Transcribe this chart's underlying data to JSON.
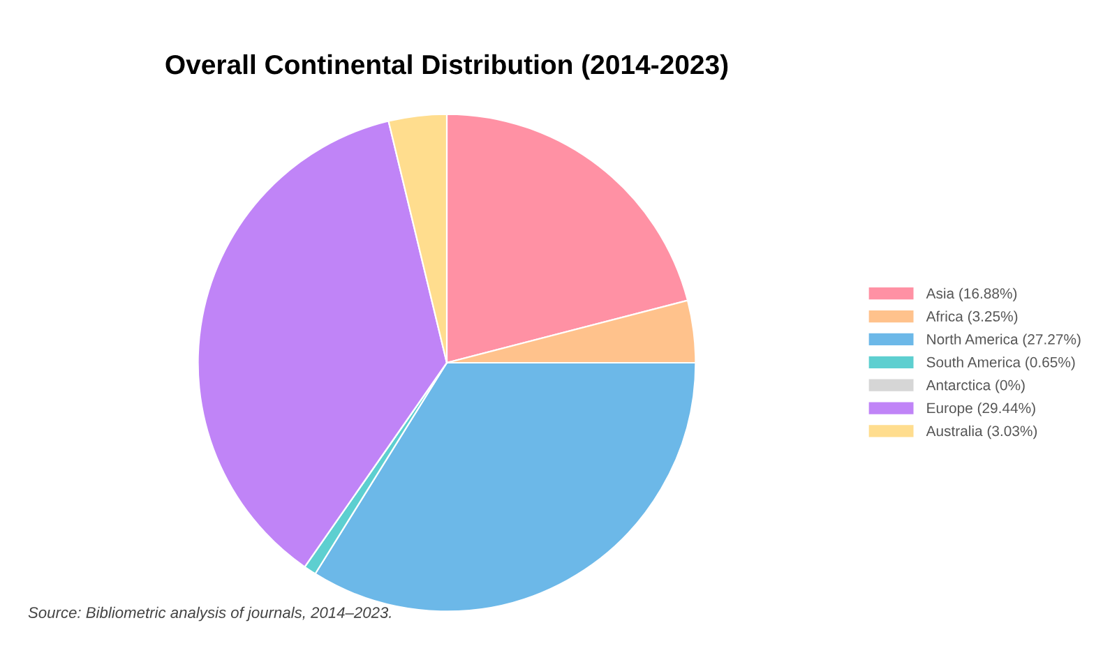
{
  "chart_data": {
    "type": "pie",
    "title": "Overall Continental Distribution (2014-2023)",
    "categories": [
      "Asia (16.88%)",
      "Africa (3.25%)",
      "North America (27.27%)",
      "South America (0.65%)",
      "Antarctica (0%)",
      "Europe (29.44%)",
      "Australia (3.03%)"
    ],
    "values": [
      16.88,
      3.25,
      27.27,
      0.65,
      0,
      29.44,
      3.03
    ],
    "colors": [
      "#ff91a4",
      "#ffc28c",
      "#6cb8e8",
      "#5dcfd0",
      "#d6d6d6",
      "#c084f7",
      "#ffdd8e"
    ],
    "legend": "right",
    "annotations": [
      "Source: Bibliometric analysis of journals, 2014–2023."
    ]
  }
}
